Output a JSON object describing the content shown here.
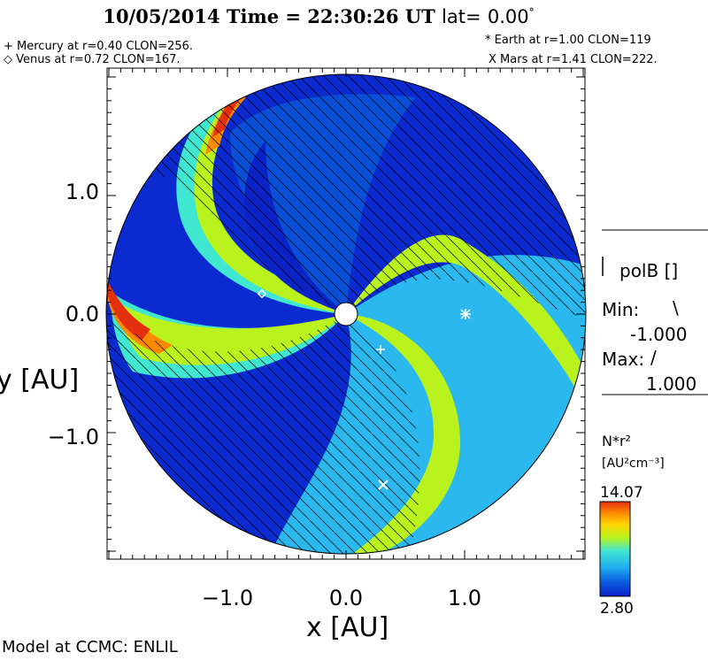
{
  "header": {
    "date": "10/05/2014",
    "time_label": "Time =",
    "time": "22:30:26 UT",
    "lat_label": "lat=",
    "lat_value": "0.00",
    "lat_unit": "°"
  },
  "planets": {
    "mercury": "+ Mercury at r=0.40 CLON=256.",
    "venus": "◇ Venus at r=0.72 CLON=167.",
    "earth": "* Earth at  r=1.00 CLON=119",
    "mars": "X Mars at r=1.41 CLON=222."
  },
  "polarity_panel": {
    "title": "polB []",
    "min_label": "Min:",
    "min_symbol": "\\",
    "min_value": "-1.000",
    "max_label": "Max:",
    "max_symbol": "/",
    "max_value": "1.000"
  },
  "colorbar": {
    "quantity": "N*r²",
    "units": "[AU²cm⁻³]",
    "max": "14.07",
    "min": "2.80",
    "colors": [
      "#0b1fc9",
      "#0a5de0",
      "#22b4f0",
      "#3fe6d0",
      "#b9f21c",
      "#ffd400",
      "#ff8a00",
      "#e53010"
    ]
  },
  "footer": "Model at CCMC: ENLIL",
  "chart_data": {
    "type": "heatmap",
    "title": "10/05/2014 Time = 22:30:26 UT lat= 0.00°",
    "xlabel": "x [AU]",
    "ylabel": "y [AU]",
    "xlim": [
      -2.0,
      2.0
    ],
    "ylim": [
      -2.0,
      2.0
    ],
    "x_ticks": [
      "−1.0",
      "0.0",
      "1.0"
    ],
    "y_ticks": [
      "1.0",
      "0.0",
      "−1.0"
    ],
    "value_range": [
      2.8,
      14.07
    ],
    "markers": [
      {
        "name": "Earth",
        "symbol": "*",
        "x": 1.0,
        "y": 0.0
      },
      {
        "name": "Venus",
        "symbol": "◇",
        "x": -0.7,
        "y": 0.16
      },
      {
        "name": "Mercury",
        "symbol": "+",
        "x": 0.28,
        "y": -0.28
      },
      {
        "name": "Mars",
        "symbol": "X",
        "x": 0.3,
        "y": -1.38
      }
    ]
  }
}
